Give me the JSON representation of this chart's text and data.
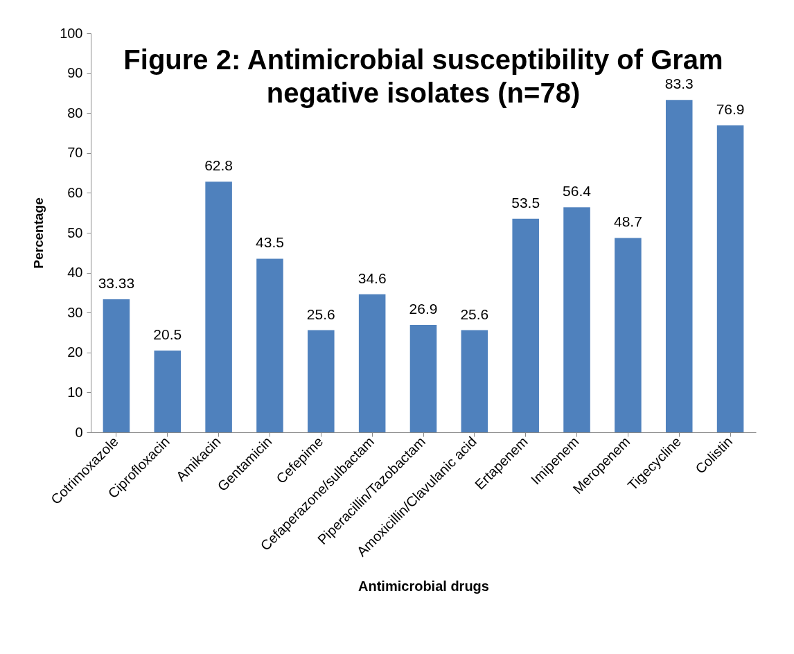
{
  "chart_data": {
    "type": "bar",
    "title": "Figure 2: Antimicrobial susceptibility of Gram negative isolates (n=78)",
    "xlabel": "Antimicrobial drugs",
    "ylabel": "Percentage",
    "categories": [
      "Cotrimoxazole",
      "Ciprofloxacin",
      "Amikacin",
      "Gentamicin",
      "Cefepime",
      "Cefaperazone/sulbactam",
      "Piperacillin/Tazobactam",
      "Amoxicillin/Clavulanic acid",
      "Ertapenem",
      "Imipenem",
      "Meropenem",
      "Tigecycline",
      "Colistin"
    ],
    "values": [
      33.33,
      20.5,
      62.8,
      43.5,
      25.6,
      34.6,
      26.9,
      25.6,
      53.5,
      56.4,
      48.7,
      83.3,
      76.9
    ],
    "color": "#4f81bd",
    "ylim": [
      0,
      100
    ],
    "yticks": [
      0,
      10,
      20,
      30,
      40,
      50,
      60,
      70,
      80,
      90,
      100
    ],
    "grid": false,
    "data_labels": true
  }
}
